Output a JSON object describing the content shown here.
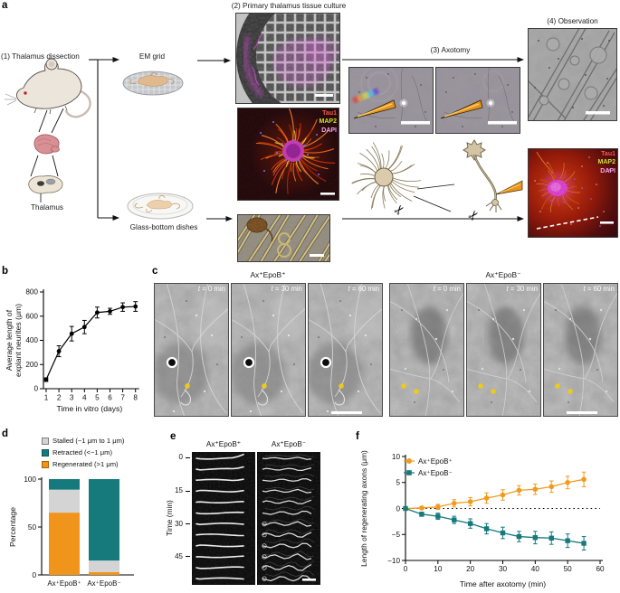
{
  "panel_labels": {
    "a": "a",
    "b": "b",
    "c": "c",
    "d": "d",
    "e": "e",
    "f": "f"
  },
  "icons": {
    "scissors": "✂"
  },
  "panel_a": {
    "step1": "(1) Thalamus dissection",
    "step2": "(2) Primary thalamus tissue culture",
    "step3": "(3) Axotomy",
    "step4": "(4) Observation",
    "em_grid": "EM grid",
    "glass_bottom": "Glass-bottom dishes",
    "thalamus": "Thalamus",
    "stains": {
      "tau1": "Tau1",
      "map2": "MAP2",
      "dapi": "DAPI"
    },
    "stain_colors": {
      "tau1": "#ff5747",
      "map2": "#cfe03a",
      "dapi": "#f2a6f2"
    }
  },
  "panel_c": {
    "group_plus": "Ax⁺EpoB⁺",
    "group_minus": "Ax⁺EpoB⁻",
    "t_symbol": "t",
    "timepoints": [
      " = 0 min",
      " = 30 min",
      " = 60 min"
    ]
  },
  "panel_e": {
    "col_plus": "Ax⁺EpoB⁺",
    "col_minus": "Ax⁺EpoB⁻",
    "ylabel": "Time (min)",
    "yticks": [
      "0",
      "15",
      "30",
      "45"
    ]
  },
  "chart_data": [
    {
      "id": "b",
      "type": "line",
      "x": [
        1,
        2,
        3,
        4,
        5,
        6,
        7,
        8
      ],
      "values": [
        75,
        310,
        455,
        510,
        630,
        640,
        675,
        680
      ],
      "errors": [
        15,
        45,
        60,
        55,
        45,
        25,
        35,
        40
      ],
      "xlabel": "Time in vitro (days)",
      "ylabel": [
        "Average length of",
        "explant neurites (μm)"
      ],
      "ylim": [
        0,
        800
      ],
      "yticks": [
        0,
        200,
        400,
        600,
        800
      ],
      "color": "#000000",
      "marker": "circle"
    },
    {
      "id": "d",
      "type": "stacked_bar",
      "categories": [
        "Ax⁺EpoB⁺",
        "Ax⁺EpoB⁻"
      ],
      "series": [
        {
          "name": "Regenerated (>1 μm)",
          "color": "#f0941c",
          "values": [
            65,
            3
          ]
        },
        {
          "name": "Stalled (−1 μm to 1 μm)",
          "color": "#d4d4d4",
          "values": [
            24,
            12
          ]
        },
        {
          "name": "Retracted (<−1 μm)",
          "color": "#16797c",
          "values": [
            11,
            85
          ]
        }
      ],
      "legend": [
        {
          "label": "Stalled (−1 μm to 1 μm)",
          "fill": "#d4d4d4",
          "border": "#7d7d7d"
        },
        {
          "label": "Retracted (<−1 μm)",
          "fill": "#16797c",
          "border": "#0d5558"
        },
        {
          "label": "Regenerated (>1 μm)",
          "fill": "#f0941c",
          "border": "#a86208"
        }
      ],
      "ylabel": "Percentage",
      "ylim": [
        0,
        100
      ],
      "yticks": [
        0,
        50,
        100
      ]
    },
    {
      "id": "f",
      "type": "line",
      "x": [
        0,
        5,
        10,
        15,
        20,
        25,
        30,
        35,
        40,
        45,
        50,
        55
      ],
      "series": [
        {
          "name": "Ax⁺EpoB⁺",
          "color": "#f09b1d",
          "marker": "circle",
          "values": [
            0,
            0.1,
            0.3,
            1.0,
            1.3,
            2.0,
            2.6,
            3.5,
            3.7,
            4.2,
            5.0,
            5.6
          ],
          "errors": [
            0.15,
            0.3,
            0.5,
            0.7,
            0.8,
            1.0,
            1.0,
            0.9,
            1.0,
            1.1,
            1.2,
            1.4
          ]
        },
        {
          "name": "Ax⁺EpoB⁻",
          "color": "#16797c",
          "marker": "square",
          "values": [
            0,
            -1.1,
            -1.5,
            -2.2,
            -2.9,
            -3.9,
            -4.7,
            -5.4,
            -5.6,
            -5.7,
            -6.2,
            -6.7
          ],
          "errors": [
            0.15,
            0.4,
            0.6,
            0.7,
            0.9,
            1.0,
            1.1,
            1.0,
            1.2,
            1.2,
            1.3,
            1.3
          ]
        }
      ],
      "xlabel": "Time after axotomy (min)",
      "ylabel": "Length of regenerating axons (μm)",
      "ylim": [
        -10,
        10
      ],
      "yticks": [
        -10,
        -5,
        0,
        5,
        10
      ],
      "xticks": [
        0,
        10,
        20,
        30,
        40,
        50,
        60
      ],
      "zero_line": true
    }
  ]
}
